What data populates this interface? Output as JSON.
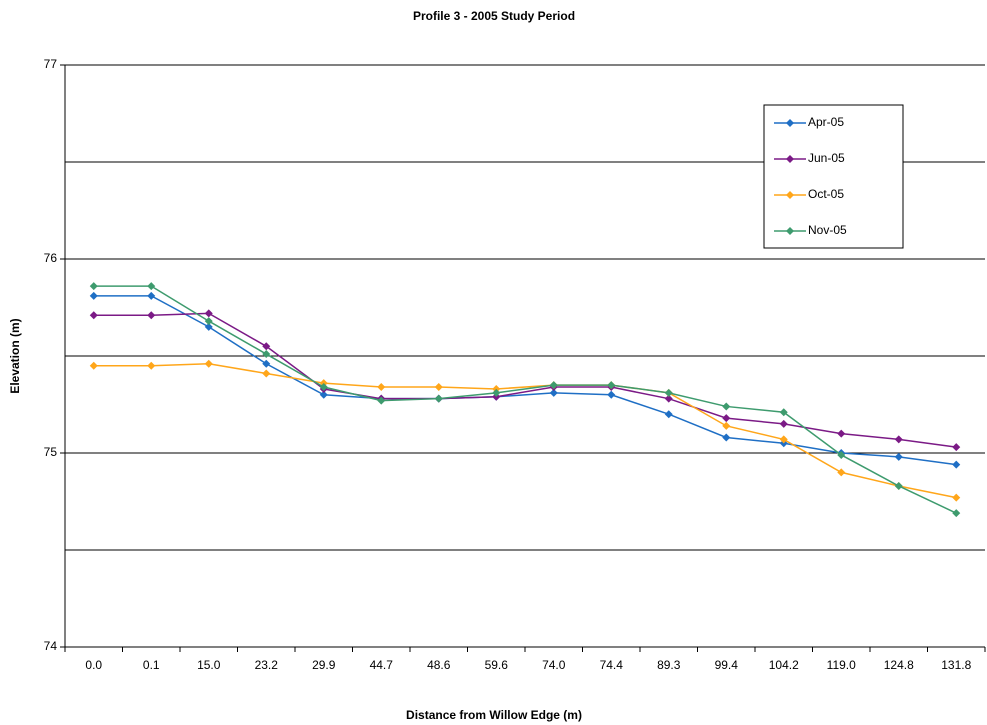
{
  "chart_data": {
    "type": "line",
    "title": "Profile 3 - 2005 Study Period",
    "x_label": "Distance from Willow Edge (m)",
    "y_label": "Elevation (m)",
    "categories": [
      "0.0",
      "0.1",
      "15.0",
      "23.2",
      "29.9",
      "44.7",
      "48.6",
      "59.6",
      "74.0",
      "74.4",
      "89.3",
      "99.4",
      "104.2",
      "119.0",
      "124.8",
      "131.8"
    ],
    "series": [
      {
        "name": "Apr-05",
        "color": "#1f6fc5",
        "values": [
          75.81,
          75.81,
          75.65,
          75.46,
          75.3,
          75.28,
          75.28,
          75.29,
          75.31,
          75.3,
          75.2,
          75.08,
          75.05,
          75.0,
          74.98,
          74.94
        ]
      },
      {
        "name": "Jun-05",
        "color": "#7b1a86",
        "values": [
          75.71,
          75.71,
          75.72,
          75.55,
          75.33,
          75.28,
          75.28,
          75.29,
          75.34,
          75.34,
          75.28,
          75.18,
          75.15,
          75.1,
          75.07,
          75.03
        ]
      },
      {
        "name": "Oct-05",
        "color": "#ffa61a",
        "values": [
          75.45,
          75.45,
          75.46,
          75.41,
          75.36,
          75.34,
          75.34,
          75.33,
          75.35,
          75.35,
          75.31,
          75.14,
          75.07,
          74.9,
          74.83,
          74.77
        ]
      },
      {
        "name": "Nov-05",
        "color": "#3e9b6e",
        "values": [
          75.86,
          75.86,
          75.68,
          75.51,
          75.34,
          75.27,
          75.28,
          75.31,
          75.35,
          75.35,
          75.31,
          75.24,
          75.21,
          74.99,
          74.83,
          74.69
        ]
      }
    ],
    "ylim": [
      74,
      77
    ],
    "yticks": [
      74,
      75,
      76,
      77
    ],
    "minor_yticks": [
      74.5,
      75.5,
      76.5
    ],
    "grid": true,
    "legend": "upper right"
  }
}
